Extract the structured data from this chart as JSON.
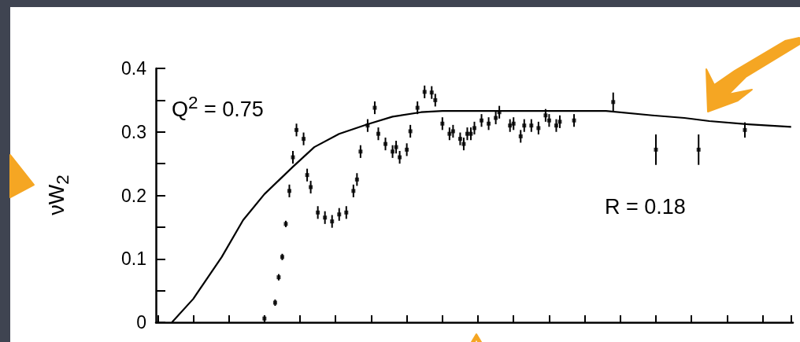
{
  "chart_data": {
    "type": "scatter",
    "ylabel": "νW$_{2}$",
    "annotations": [
      "Q$^{2}$ = 0.75",
      "R = 0.18"
    ],
    "categories": [
      null,
      null,
      null,
      null,
      null,
      null,
      null,
      null,
      null,
      null,
      null,
      null,
      null,
      null,
      null,
      null,
      null,
      null,
      null,
      null,
      null,
      null,
      null,
      null,
      null,
      null,
      null,
      null,
      null,
      null,
      null,
      null,
      null,
      null,
      null,
      null,
      null,
      null,
      null,
      null,
      null,
      null,
      null,
      null,
      null,
      null,
      null,
      null,
      null,
      null,
      null,
      null,
      null,
      null,
      null,
      null,
      null,
      null,
      null,
      null,
      null,
      null,
      null,
      null,
      null,
      null,
      null,
      null,
      null,
      null,
      null,
      null,
      null,
      null,
      null,
      null,
      null,
      null,
      null,
      null,
      null,
      null,
      null,
      null,
      null,
      null,
      null,
      null,
      null,
      null,
      null,
      null,
      null,
      null,
      null,
      null,
      null,
      null,
      null,
      null,
      null,
      null,
      null,
      null,
      null,
      null,
      null,
      null,
      null,
      null,
      null,
      null,
      null,
      null,
      null,
      null,
      null,
      null,
      null,
      null,
      null,
      null,
      null,
      null,
      null,
      null,
      null,
      null,
      null,
      null,
      null,
      null,
      null,
      null,
      null,
      null,
      null,
      null,
      null,
      null,
      null,
      null,
      null,
      null,
      null,
      null,
      null,
      null,
      null,
      null,
      null,
      null,
      null,
      null,
      null,
      null,
      null,
      null,
      null,
      null,
      null,
      null,
      null,
      null,
      null,
      null,
      null,
      null,
      null,
      null,
      null,
      null,
      null,
      null,
      null,
      null,
      null,
      null,
      null
    ],
    "series": [
      {
        "type": "line",
        "color": "#000000",
        "marker": "none",
        "line_style": "solid",
        "values": [
          null,
          null,
          null,
          null,
          0,
          null,
          null,
          null,
          null,
          null,
          0.037,
          null,
          null,
          null,
          null,
          null,
          null,
          null,
          0.103,
          null,
          null,
          null,
          null,
          null,
          0.161,
          null,
          null,
          null,
          null,
          null,
          0.202,
          null,
          null,
          null,
          null,
          null,
          null,
          null,
          0.245,
          null,
          null,
          null,
          null,
          null,
          0.276,
          null,
          null,
          null,
          null,
          null,
          null,
          0.297,
          null,
          null,
          null,
          null,
          null,
          null,
          null,
          0.312,
          null,
          null,
          null,
          null,
          null,
          null,
          0.324,
          null,
          null,
          null,
          null,
          null,
          null,
          null,
          0.331,
          null,
          null,
          null,
          null,
          null,
          0.333,
          null,
          null,
          null,
          null,
          null,
          null,
          null,
          null,
          null,
          null,
          null,
          null,
          null,
          null,
          null,
          null,
          null,
          null,
          null,
          null,
          null,
          null,
          null,
          null,
          null,
          null,
          null,
          null,
          null,
          null,
          null,
          null,
          null,
          null,
          null,
          null,
          null,
          null,
          null,
          null,
          null,
          null,
          null,
          null,
          null,
          0.333,
          null,
          null,
          null,
          null,
          null,
          null,
          null,
          null,
          null,
          null,
          null,
          null,
          0.326,
          null,
          null,
          null,
          null,
          null,
          null,
          null,
          null,
          0.322,
          null,
          null,
          null,
          null,
          null,
          null,
          0.317,
          null,
          null,
          null,
          null,
          null,
          null,
          null,
          null,
          null,
          null,
          0.312,
          null,
          null,
          null,
          null,
          null,
          null,
          null,
          null,
          null,
          null,
          null,
          0.308
        ]
      },
      {
        "color": "#000000",
        "marker": "square",
        "values": [
          null,
          null,
          null,
          null,
          null,
          null,
          null,
          null,
          null,
          null,
          null,
          null,
          null,
          null,
          null,
          null,
          null,
          null,
          null,
          null,
          null,
          null,
          null,
          null,
          null,
          null,
          null,
          null,
          null,
          null,
          0.006,
          null,
          null,
          0.031,
          0.071,
          0.103,
          0.155,
          0.207,
          0.26,
          0.303,
          null,
          0.289,
          0.232,
          0.213,
          null,
          0.173,
          null,
          0.165,
          null,
          0.159,
          null,
          0.17,
          null,
          0.173,
          null,
          0.207,
          0.225,
          0.269,
          null,
          0.31,
          null,
          0.338,
          0.297,
          null,
          0.281,
          null,
          0.269,
          0.276,
          0.26,
          null,
          0.272,
          0.301,
          null,
          0.338,
          null,
          0.363,
          null,
          0.362,
          0.35,
          null,
          0.313,
          null,
          0.297,
          0.301,
          null,
          0.289,
          0.281,
          0.297,
          0.297,
          0.306,
          null,
          0.318,
          null,
          0.313,
          null,
          0.322,
          0.331,
          null,
          null,
          0.31,
          0.313,
          null,
          0.293,
          0.31,
          null,
          0.31,
          null,
          0.306,
          null,
          0.326,
          0.318,
          null,
          0.31,
          0.316,
          null,
          null,
          null,
          0.318,
          null,
          null,
          null,
          null,
          null,
          null,
          null,
          null,
          null,
          null,
          0.347,
          null,
          null,
          null,
          null,
          null,
          null,
          null,
          null,
          null,
          null,
          null,
          0.272,
          null,
          null,
          null,
          null,
          null,
          null,
          null,
          null,
          null,
          null,
          null,
          0.272,
          null,
          null,
          null,
          null,
          null,
          null,
          null,
          null,
          null,
          null,
          null,
          null,
          0.303,
          null,
          null,
          null,
          null,
          null,
          null,
          null,
          null,
          null,
          null,
          null,
          null,
          null
        ],
        "errors": [
          null,
          null,
          null,
          null,
          null,
          null,
          null,
          null,
          null,
          null,
          null,
          null,
          null,
          null,
          null,
          null,
          null,
          null,
          null,
          null,
          null,
          null,
          null,
          null,
          null,
          null,
          null,
          null,
          null,
          null,
          0.005,
          null,
          null,
          0.005,
          0.005,
          0.005,
          0.005,
          0.01,
          0.01,
          0.01,
          null,
          0.01,
          0.01,
          0.01,
          null,
          0.01,
          null,
          0.01,
          null,
          0.01,
          null,
          0.01,
          null,
          0.01,
          null,
          0.01,
          0.01,
          0.01,
          null,
          0.01,
          null,
          0.01,
          0.01,
          null,
          0.01,
          null,
          0.01,
          0.01,
          0.01,
          null,
          0.01,
          0.01,
          null,
          0.01,
          null,
          0.01,
          null,
          0.01,
          0.01,
          null,
          0.01,
          null,
          0.01,
          0.01,
          null,
          0.01,
          0.01,
          0.01,
          0.01,
          0.01,
          null,
          0.01,
          null,
          0.01,
          null,
          0.01,
          0.01,
          null,
          null,
          0.01,
          0.01,
          null,
          0.01,
          0.01,
          null,
          0.01,
          null,
          0.01,
          null,
          0.01,
          0.01,
          null,
          0.01,
          0.01,
          null,
          null,
          null,
          0.01,
          null,
          null,
          null,
          null,
          null,
          null,
          null,
          null,
          null,
          null,
          0.015,
          null,
          null,
          null,
          null,
          null,
          null,
          null,
          null,
          null,
          null,
          null,
          0.024,
          null,
          null,
          null,
          null,
          null,
          null,
          null,
          null,
          null,
          null,
          null,
          0.024,
          null,
          null,
          null,
          null,
          null,
          null,
          null,
          null,
          null,
          null,
          null,
          null,
          0.012,
          null,
          null,
          null,
          null,
          null,
          null,
          null,
          null,
          null,
          null,
          null,
          null,
          null
        ]
      }
    ],
    "ylim": [
      0,
      0.4
    ],
    "yticks": [
      0,
      {
        "value": 0.05,
        "label": null
      },
      0.1,
      {
        "value": 0.15,
        "label": null
      },
      0.2,
      {
        "value": 0.25,
        "label": null
      },
      0.3,
      {
        "value": 0.35,
        "label": null
      },
      0.4
    ]
  }
}
